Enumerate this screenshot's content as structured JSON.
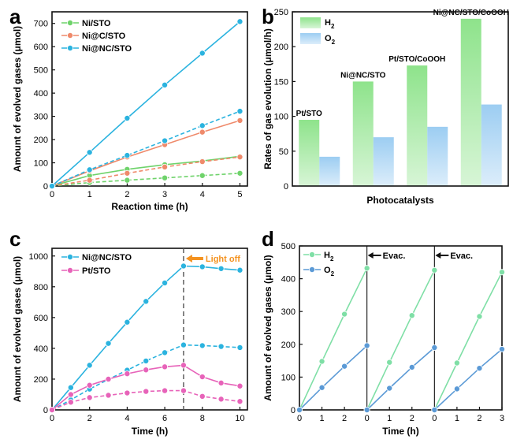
{
  "colors": {
    "cyan": "#2bb3df",
    "salmon": "#ef8a6b",
    "green": "#6fd36b",
    "pink": "#e763b9",
    "bar_h2": "#8ee38b",
    "bar_o2": "#9ccdf2",
    "mint": "#7fdfa6",
    "blue": "#5b9ad6",
    "orange": "#f4921f",
    "text": "#111111"
  },
  "chart_data": [
    {
      "panel": "a",
      "type": "line",
      "xlabel": "Reaction time (h)",
      "ylabel": "Amount of evolved gases (μmol)",
      "xlim": [
        0,
        5.2
      ],
      "ylim": [
        0,
        750
      ],
      "xticks": [
        0,
        1,
        2,
        3,
        4,
        5
      ],
      "yticks": [
        0,
        100,
        200,
        300,
        400,
        500,
        600,
        700
      ],
      "legend": [
        "Ni/STO",
        "Ni@C/STO",
        "Ni@NC/STO"
      ],
      "legend_position": "top-left",
      "x": [
        0,
        1,
        2,
        3,
        4,
        5
      ],
      "series": [
        {
          "name": "Ni/STO",
          "gas": "H2",
          "color_key": "green",
          "dashed": false,
          "values": [
            0,
            45,
            72,
            92,
            108,
            128
          ]
        },
        {
          "name": "Ni/STO",
          "gas": "O2",
          "color_key": "green",
          "dashed": true,
          "values": [
            0,
            15,
            25,
            35,
            45,
            55
          ]
        },
        {
          "name": "Ni@C/STO",
          "gas": "H2",
          "color_key": "salmon",
          "dashed": false,
          "values": [
            0,
            65,
            125,
            178,
            232,
            282
          ]
        },
        {
          "name": "Ni@C/STO",
          "gas": "O2",
          "color_key": "salmon",
          "dashed": true,
          "values": [
            0,
            25,
            55,
            82,
            105,
            125
          ]
        },
        {
          "name": "Ni@NC/STO",
          "gas": "H2",
          "color_key": "cyan",
          "dashed": false,
          "values": [
            0,
            145,
            292,
            435,
            572,
            708
          ]
        },
        {
          "name": "Ni@NC/STO",
          "gas": "O2",
          "color_key": "cyan",
          "dashed": true,
          "values": [
            0,
            70,
            132,
            195,
            260,
            322
          ]
        }
      ]
    },
    {
      "panel": "b",
      "type": "bar",
      "xlabel": "Photocatalysts",
      "ylabel": "Rates of gas evolution (μmol/h)",
      "ylim": [
        0,
        250
      ],
      "yticks": [
        0,
        50,
        100,
        150,
        200,
        250
      ],
      "legend": [
        "H2",
        "O2"
      ],
      "legend_position": "top-left",
      "categories": [
        "Pt/STO",
        "Ni@NC/STO",
        "Pt/STO/CoOOH",
        "Ni@NC/STO/CoOOH"
      ],
      "series": [
        {
          "name": "H2",
          "color_key": "bar_h2",
          "values": [
            95,
            150,
            173,
            240
          ]
        },
        {
          "name": "O2",
          "color_key": "bar_o2",
          "values": [
            42,
            70,
            85,
            117
          ]
        }
      ]
    },
    {
      "panel": "c",
      "type": "line",
      "xlabel": "Time (h)",
      "ylabel": "Amount of evolved gases (μmol)",
      "xlim": [
        0,
        10.4
      ],
      "ylim": [
        0,
        1050
      ],
      "xticks": [
        0,
        2,
        4,
        6,
        8,
        10
      ],
      "yticks": [
        0,
        200,
        400,
        600,
        800,
        1000
      ],
      "legend": [
        "Ni@NC/STO",
        "Pt/STO"
      ],
      "legend_position": "top-left",
      "annotation": {
        "text": "Light off",
        "x": 7
      },
      "x": [
        0,
        1,
        2,
        3,
        4,
        5,
        6,
        7,
        8,
        9,
        10
      ],
      "series": [
        {
          "name": "Ni@NC/STO",
          "gas": "H2",
          "color_key": "cyan",
          "dashed": false,
          "values": [
            0,
            145,
            290,
            432,
            570,
            705,
            825,
            935,
            930,
            918,
            908
          ]
        },
        {
          "name": "Ni@NC/STO",
          "gas": "O2",
          "color_key": "cyan",
          "dashed": true,
          "values": [
            0,
            65,
            135,
            198,
            258,
            318,
            372,
            422,
            418,
            412,
            405
          ]
        },
        {
          "name": "Pt/STO",
          "gas": "H2",
          "color_key": "pink",
          "dashed": false,
          "values": [
            0,
            100,
            160,
            200,
            235,
            260,
            280,
            290,
            215,
            175,
            155
          ]
        },
        {
          "name": "Pt/STO",
          "gas": "O2",
          "color_key": "pink",
          "dashed": true,
          "values": [
            0,
            50,
            80,
            95,
            110,
            120,
            125,
            125,
            88,
            70,
            55
          ]
        }
      ]
    },
    {
      "panel": "d",
      "type": "line",
      "xlabel": "Time (h)",
      "ylabel": "Amount of evolved gases (μmol)",
      "ylim": [
        0,
        500
      ],
      "yticks": [
        0,
        100,
        200,
        300,
        400,
        500
      ],
      "xticks_labels": [
        "0",
        "1",
        "2",
        "3",
        "0",
        "1",
        "2",
        "3",
        "0",
        "1",
        "2",
        "3"
      ],
      "legend": [
        "H2",
        "O2"
      ],
      "legend_position": "top-left",
      "annotations": [
        "Evac.",
        "Evac."
      ],
      "cycles": [
        {
          "H2": [
            0,
            148,
            292,
            432
          ],
          "O2": [
            0,
            68,
            133,
            196
          ]
        },
        {
          "H2": [
            0,
            145,
            288,
            426
          ],
          "O2": [
            0,
            66,
            130,
            190
          ]
        },
        {
          "H2": [
            0,
            143,
            285,
            420
          ],
          "O2": [
            0,
            64,
            127,
            185
          ]
        }
      ],
      "series_colors": {
        "H2": "mint",
        "O2": "blue"
      }
    }
  ],
  "panels": {
    "a": {
      "label": "a"
    },
    "b": {
      "label": "b"
    },
    "c": {
      "label": "c"
    },
    "d": {
      "label": "d"
    }
  }
}
